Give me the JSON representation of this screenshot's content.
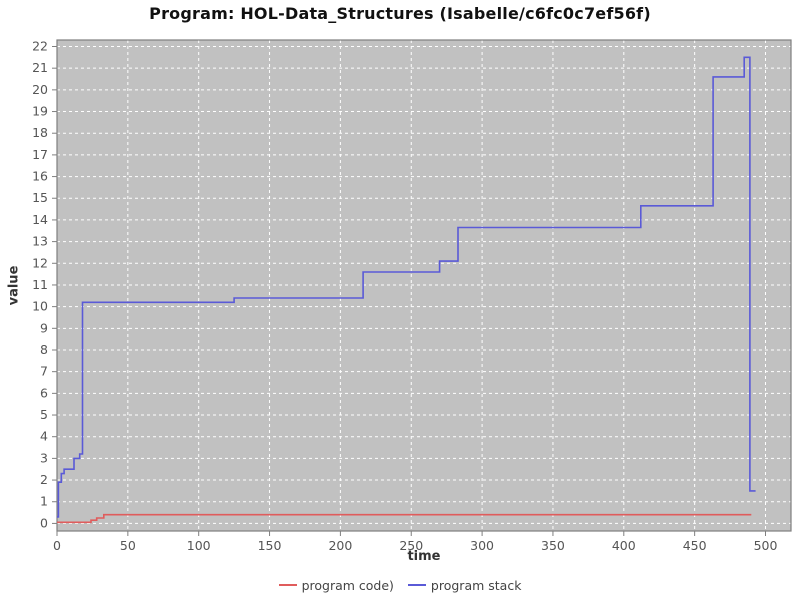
{
  "title": "Program: HOL-Data_Structures (Isabelle/c6fc0c7ef56f)",
  "chart_data": {
    "type": "line",
    "title": "Program: HOL-Data_Structures (Isabelle/c6fc0c7ef56f)",
    "xlabel": "time",
    "ylabel": "value",
    "xlim": [
      0,
      518
    ],
    "ylim": [
      -0.35,
      22.3
    ],
    "x_ticks": [
      0,
      50,
      100,
      150,
      200,
      250,
      300,
      350,
      400,
      450,
      500
    ],
    "y_ticks": [
      0,
      1,
      2,
      3,
      4,
      5,
      6,
      7,
      8,
      9,
      10,
      11,
      12,
      13,
      14,
      15,
      16,
      17,
      18,
      19,
      20,
      21,
      22
    ],
    "grid": true,
    "grid_color": "#ffffff",
    "plot_bg": "#c1c1c1",
    "border_color": "#7f7f7f",
    "tick_label_color": "#555555",
    "legend_position": "bottom",
    "series": [
      {
        "name": "program code)",
        "color": "#e05c5c",
        "step": true,
        "points": [
          [
            0,
            0.05
          ],
          [
            24,
            0.15
          ],
          [
            28,
            0.25
          ],
          [
            33,
            0.4
          ],
          [
            490,
            0.4
          ]
        ]
      },
      {
        "name": "program stack",
        "color": "#5a5ad7",
        "step": true,
        "points": [
          [
            0,
            0.3
          ],
          [
            1,
            1.9
          ],
          [
            3,
            2.3
          ],
          [
            5,
            2.5
          ],
          [
            12,
            3.0
          ],
          [
            16,
            3.2
          ],
          [
            18,
            10.2
          ],
          [
            125,
            10.4
          ],
          [
            216,
            11.6
          ],
          [
            270,
            12.1
          ],
          [
            283,
            13.65
          ],
          [
            412,
            14.65
          ],
          [
            463,
            20.6
          ],
          [
            485,
            21.5
          ],
          [
            489,
            1.5
          ],
          [
            493,
            1.5
          ]
        ]
      }
    ]
  }
}
